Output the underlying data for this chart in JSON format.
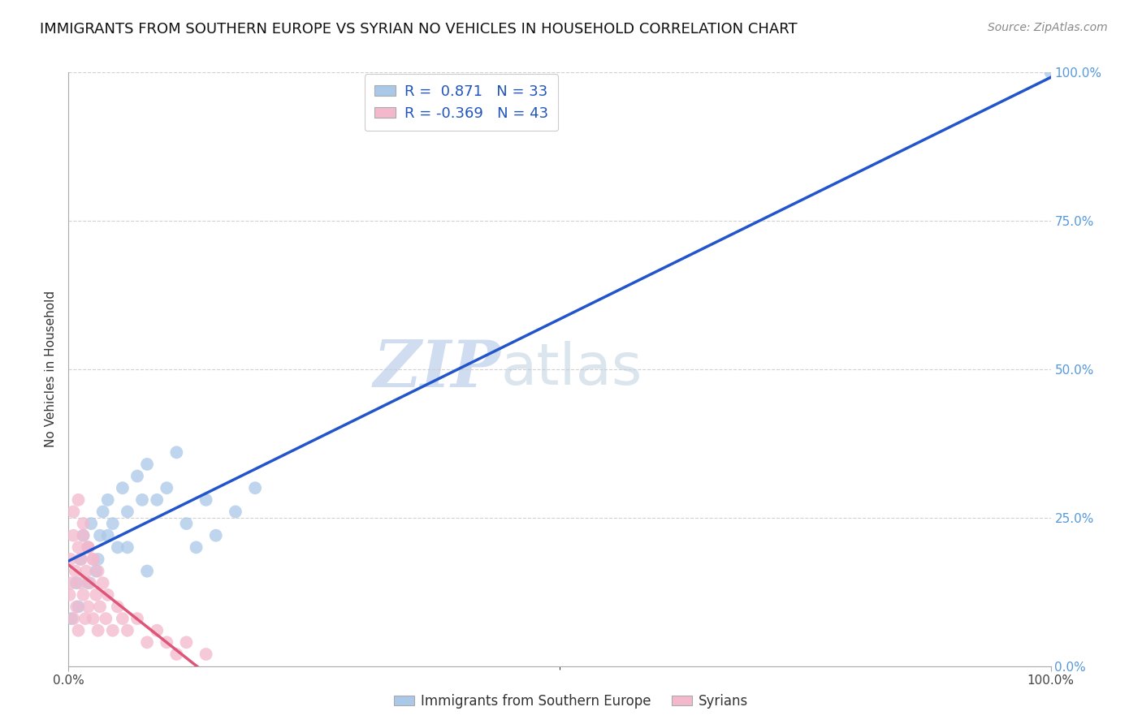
{
  "title": "IMMIGRANTS FROM SOUTHERN EUROPE VS SYRIAN NO VEHICLES IN HOUSEHOLD CORRELATION CHART",
  "source": "Source: ZipAtlas.com",
  "ylabel": "No Vehicles in Household",
  "legend_label1": "Immigrants from Southern Europe",
  "legend_label2": "Syrians",
  "r1": 0.871,
  "n1": 33,
  "r2": -0.369,
  "n2": 43,
  "blue_color": "#aac8e8",
  "pink_color": "#f4b8cc",
  "blue_line_color": "#2255cc",
  "pink_line_color": "#dd5577",
  "watermark_zip": "ZIP",
  "watermark_atlas": "atlas",
  "background_color": "#ffffff",
  "grid_color": "#cccccc",
  "blue_scatter_x": [
    0.3,
    0.8,
    1.2,
    1.5,
    2.0,
    2.3,
    2.8,
    3.2,
    3.5,
    4.0,
    4.5,
    5.0,
    5.5,
    6.0,
    7.0,
    7.5,
    8.0,
    9.0,
    10.0,
    11.0,
    12.0,
    13.0,
    14.0,
    15.0,
    17.0,
    19.0,
    1.0,
    2.0,
    3.0,
    4.0,
    6.0,
    8.0,
    100.0
  ],
  "blue_scatter_y": [
    8.0,
    14.0,
    18.0,
    22.0,
    20.0,
    24.0,
    16.0,
    22.0,
    26.0,
    28.0,
    24.0,
    20.0,
    30.0,
    26.0,
    32.0,
    28.0,
    34.0,
    28.0,
    30.0,
    36.0,
    24.0,
    20.0,
    28.0,
    22.0,
    26.0,
    30.0,
    10.0,
    14.0,
    18.0,
    22.0,
    20.0,
    16.0,
    100.0
  ],
  "pink_scatter_x": [
    0.1,
    0.2,
    0.3,
    0.5,
    0.5,
    0.7,
    0.8,
    1.0,
    1.0,
    1.2,
    1.3,
    1.5,
    1.5,
    1.7,
    1.8,
    2.0,
    2.0,
    2.2,
    2.5,
    2.5,
    2.8,
    3.0,
    3.0,
    3.2,
    3.5,
    3.8,
    4.0,
    4.5,
    5.0,
    5.5,
    6.0,
    7.0,
    8.0,
    9.0,
    10.0,
    11.0,
    12.0,
    14.0,
    0.5,
    1.0,
    1.5,
    2.0,
    2.5
  ],
  "pink_scatter_y": [
    12.0,
    18.0,
    14.0,
    22.0,
    8.0,
    16.0,
    10.0,
    20.0,
    6.0,
    14.0,
    18.0,
    12.0,
    24.0,
    8.0,
    16.0,
    10.0,
    20.0,
    14.0,
    8.0,
    18.0,
    12.0,
    16.0,
    6.0,
    10.0,
    14.0,
    8.0,
    12.0,
    6.0,
    10.0,
    8.0,
    6.0,
    8.0,
    4.0,
    6.0,
    4.0,
    2.0,
    4.0,
    2.0,
    26.0,
    28.0,
    22.0,
    20.0,
    18.0
  ],
  "ytick_values": [
    0,
    25,
    50,
    75,
    100
  ],
  "ytick_color": "#5599dd",
  "xtick_color": "#444444",
  "title_fontsize": 13,
  "axis_fontsize": 11
}
